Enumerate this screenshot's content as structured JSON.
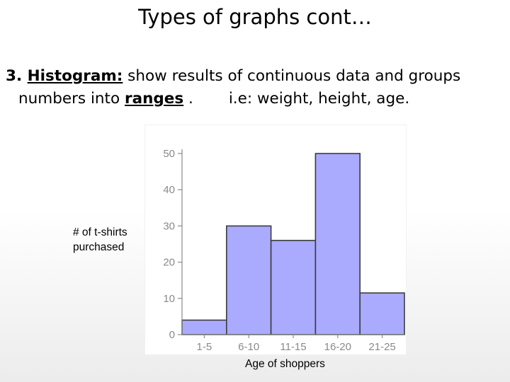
{
  "slide": {
    "title": "Types of graphs cont…",
    "body": {
      "number": "3. ",
      "term": "Histogram:",
      "text1": " show results of continuous data and groups",
      "text2a": "numbers into ",
      "ranges": "ranges",
      "text2b": " .",
      "examples": "i.e: weight, height, age."
    }
  },
  "chart_data": {
    "type": "bar",
    "categories": [
      "1-5",
      "6-10",
      "11-15",
      "16-20",
      "21-25"
    ],
    "values": [
      4,
      30,
      26,
      50,
      11.5
    ],
    "xlabel": "Age of shoppers",
    "ylabel_lines": [
      "# of t-shirts",
      "purchased"
    ],
    "yticks": [
      0,
      10,
      20,
      30,
      40,
      50
    ],
    "ylim": [
      0,
      50
    ],
    "bar_color": "#aaaaff",
    "bar_edge_color": "#3c3c3c",
    "grid": false,
    "bar_gap": 0
  }
}
